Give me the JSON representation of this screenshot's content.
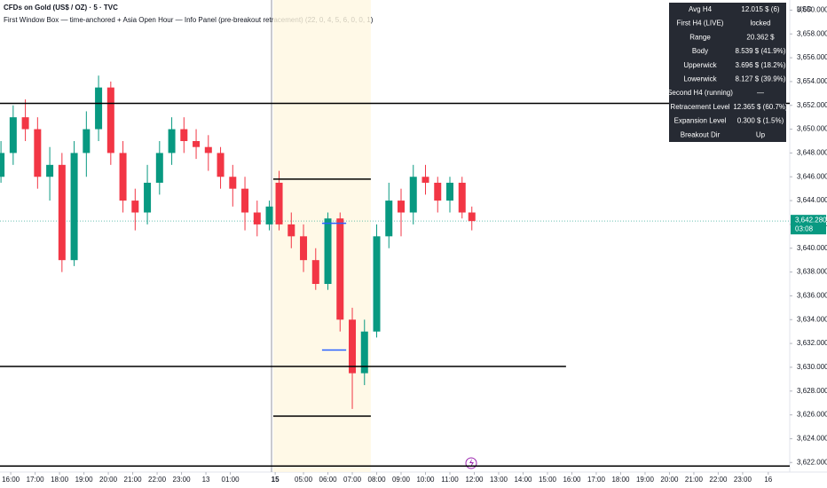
{
  "chart_data": {
    "type": "candlestick",
    "title": "CFDs on Gold (US$ / OZ) · 5 · TVC",
    "subtitle": "First Window Box — time-anchored + Asia Open Hour — Info Panel (pre-breakout retracement) (22, 0, 4, 5, 6, 0, 0, 1)",
    "currency": "USD",
    "up_color": "#089981",
    "down_color": "#f23645",
    "candles": {
      "x": [
        -0.4,
        0.1,
        0.6,
        1.1,
        1.6,
        2.1,
        2.6,
        3.1,
        3.6,
        4.1,
        4.6,
        5.1,
        5.6,
        6.1,
        6.6,
        7.1,
        7.6,
        8.1,
        8.6,
        9.1,
        9.6,
        10.1,
        10.6,
        11.0,
        11.5,
        12.0,
        12.5,
        13.0,
        13.5,
        14.0,
        14.5,
        15.0,
        15.5,
        16.0,
        16.5,
        17.0,
        17.5,
        18.0,
        18.5,
        18.9
      ],
      "open": [
        3646,
        3648,
        3651,
        3650,
        3646,
        3647,
        3639,
        3648,
        3650,
        3653.5,
        3648,
        3644,
        3643,
        3645.5,
        3648,
        3650,
        3649,
        3648.5,
        3648,
        3646,
        3645,
        3643,
        3642,
        3645.5,
        3642,
        3641,
        3639,
        3637,
        3642.5,
        3634,
        3629.5,
        3633,
        3641,
        3644,
        3643,
        3646,
        3645.5,
        3644,
        3645.5,
        3643
      ],
      "high": [
        3649,
        3652,
        3652.5,
        3651,
        3648.5,
        3648,
        3649,
        3651.5,
        3654.5,
        3654,
        3649,
        3645,
        3647,
        3649,
        3651,
        3651,
        3650,
        3649.5,
        3648.5,
        3647,
        3646,
        3644,
        3644,
        3646.5,
        3643,
        3642,
        3640,
        3643,
        3643,
        3635,
        3634,
        3642,
        3645.5,
        3645,
        3647,
        3647,
        3646,
        3646,
        3646,
        3643.5
      ],
      "low": [
        3645.5,
        3647,
        3649,
        3645,
        3644,
        3638,
        3638.5,
        3646,
        3649,
        3647,
        3643,
        3641.5,
        3642,
        3644.5,
        3647,
        3648,
        3647.5,
        3646.5,
        3645,
        3643.5,
        3641.5,
        3641,
        3641.5,
        3641.5,
        3640,
        3638,
        3636.5,
        3636.5,
        3633,
        3626.5,
        3628.5,
        3632.5,
        3640,
        3641,
        3642,
        3644.5,
        3643,
        3643,
        3642.5,
        3641.5
      ],
      "close": [
        3648,
        3651,
        3650,
        3646,
        3647,
        3639,
        3648,
        3650,
        3653.5,
        3648,
        3644,
        3643,
        3645.5,
        3648,
        3650,
        3649,
        3648.5,
        3648,
        3646,
        3645,
        3643,
        3642,
        3643.5,
        3642,
        3641,
        3639,
        3637,
        3642.5,
        3634,
        3629.5,
        3633,
        3641,
        3644,
        3643,
        3646,
        3645.5,
        3644,
        3645.5,
        3643,
        3642.28
      ]
    },
    "levels": [
      {
        "value": 3652.17,
        "x0": -0.44,
        "x1": 31.93,
        "color": "#000000"
      },
      {
        "value": 3630.07,
        "x0": -0.44,
        "x1": 22.76,
        "color": "#000000"
      },
      {
        "value": 3645.8,
        "x0": 10.76,
        "x1": 14.76,
        "color": "#000000"
      },
      {
        "value": 3625.9,
        "x0": 10.76,
        "x1": 14.76,
        "color": "#000000"
      },
      {
        "value": 3621.7,
        "x0": -0.44,
        "x1": 31.93,
        "color": "#000000"
      },
      {
        "value": 3642.1,
        "x0": 12.76,
        "x1": 13.75,
        "color": "#2962ff"
      },
      {
        "value": 3631.45,
        "x0": 12.76,
        "x1": 13.75,
        "color": "#2962ff"
      }
    ],
    "session_start": 10.69,
    "highlight": [
      10.76,
      14.76
    ],
    "last_price": {
      "value": 3642.28,
      "label": "3,642.280",
      "countdown": "03:08"
    },
    "xlim": [
      -0.44,
      31.93
    ],
    "ylim": [
      3621.2,
      3660.85
    ],
    "xticks": [
      {
        "value": 0,
        "label": "16:00"
      },
      {
        "value": 1,
        "label": "17:00"
      },
      {
        "value": 2,
        "label": "18:00"
      },
      {
        "value": 3,
        "label": "19:00"
      },
      {
        "value": 4,
        "label": "20:00"
      },
      {
        "value": 5,
        "label": "21:00"
      },
      {
        "value": 6,
        "label": "22:00"
      },
      {
        "value": 7,
        "label": "23:00"
      },
      {
        "value": 8,
        "label": "13"
      },
      {
        "value": 9,
        "label": "01:00"
      },
      {
        "value": 10.84,
        "label": "15"
      },
      {
        "value": 12,
        "label": "05:00"
      },
      {
        "value": 13,
        "label": "06:00"
      },
      {
        "value": 14,
        "label": "07:00"
      },
      {
        "value": 15,
        "label": "08:00"
      },
      {
        "value": 16,
        "label": "09:00"
      },
      {
        "value": 17,
        "label": "10:00"
      },
      {
        "value": 18,
        "label": "11:00"
      },
      {
        "value": 19,
        "label": "12:00"
      },
      {
        "value": 20,
        "label": "13:00"
      },
      {
        "value": 21,
        "label": "14:00"
      },
      {
        "value": 22,
        "label": "15:00"
      },
      {
        "value": 23,
        "label": "16:00"
      },
      {
        "value": 24,
        "label": "17:00"
      },
      {
        "value": 25,
        "label": "18:00"
      },
      {
        "value": 26,
        "label": "19:00"
      },
      {
        "value": 27,
        "label": "20:00"
      },
      {
        "value": 28,
        "label": "21:00"
      },
      {
        "value": 29,
        "label": "22:00"
      },
      {
        "value": 30,
        "label": "23:00"
      },
      {
        "value": 31.05,
        "label": "16"
      }
    ],
    "yticks": [
      {
        "value": 3622,
        "label": "3,622.000"
      },
      {
        "value": 3624,
        "label": "3,624.000"
      },
      {
        "value": 3626,
        "label": "3,626.000"
      },
      {
        "value": 3628,
        "label": "3,628.000"
      },
      {
        "value": 3630,
        "label": "3,630.000"
      },
      {
        "value": 3632,
        "label": "3,632.000"
      },
      {
        "value": 3634,
        "label": "3,634.000"
      },
      {
        "value": 3636,
        "label": "3,636.000"
      },
      {
        "value": 3638,
        "label": "3,638.000"
      },
      {
        "value": 3640,
        "label": "3,640.000"
      },
      {
        "value": 3642,
        "label": "3,642.000"
      },
      {
        "value": 3644,
        "label": "3,644.000"
      },
      {
        "value": 3646,
        "label": "3,646.000"
      },
      {
        "value": 3648,
        "label": "3,648.000"
      },
      {
        "value": 3650,
        "label": "3,650.000"
      },
      {
        "value": 3652,
        "label": "3,652.000"
      },
      {
        "value": 3654,
        "label": "3,654.000"
      },
      {
        "value": 3656,
        "label": "3,656.000"
      },
      {
        "value": 3658,
        "label": "3,658.000"
      },
      {
        "value": 3660,
        "label": "3,660.000"
      }
    ],
    "info_panel": {
      "rows": [
        [
          "Avg H4",
          "12.015 $ (6)"
        ],
        [
          "First H4 (LIVE)",
          "locked"
        ],
        [
          "Range",
          "20.362 $"
        ],
        [
          "Body",
          "8.539 $ (41.9%)"
        ],
        [
          "Upperwick",
          "3.696 $ (18.2%)"
        ],
        [
          "Lowerwick",
          "8.127 $ (39.9%)"
        ],
        [
          "Second H4 (running)",
          "—"
        ],
        [
          "Retracement Level",
          "12.365 $ (60.7%)"
        ],
        [
          "Expansion Level",
          "0.300 $ (1.5%)"
        ],
        [
          "Breakout Dir",
          "Up"
        ]
      ]
    }
  }
}
